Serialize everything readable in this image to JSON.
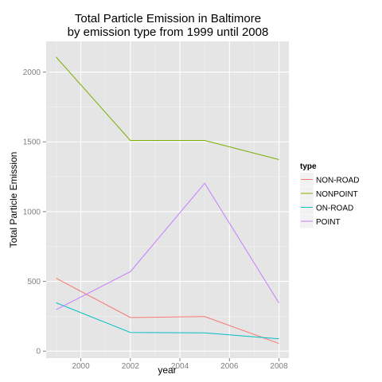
{
  "chart_data": {
    "type": "line",
    "title_line1": "Total Particle Emission in Baltimore",
    "title_line2": "by emission type from 1999 until 2008",
    "xlabel": "year",
    "ylabel": "Total Particle Emission",
    "xlim": [
      1998.6,
      2008.4
    ],
    "ylim": [
      -50,
      2220
    ],
    "x_ticks": [
      2000,
      2002,
      2004,
      2006,
      2008
    ],
    "x_tick_labels": [
      "2000",
      "2002",
      "2004",
      "2006",
      "2008"
    ],
    "y_ticks": [
      0,
      500,
      1000,
      1500,
      2000
    ],
    "y_tick_labels": [
      "0",
      "500",
      "1000",
      "1500",
      "2000"
    ],
    "grid": true,
    "legend": {
      "title": "type",
      "position": "right"
    },
    "x": [
      1999,
      2002,
      2005,
      2008
    ],
    "series": [
      {
        "name": "NON-ROAD",
        "color": "#F8766D",
        "values": [
          523,
          241,
          248,
          55
        ]
      },
      {
        "name": "NONPOINT",
        "color": "#7CAE00",
        "values": [
          2108,
          1510,
          1510,
          1373
        ]
      },
      {
        "name": "ON-ROAD",
        "color": "#00BFC4",
        "values": [
          347,
          134,
          131,
          88
        ]
      },
      {
        "name": "POINT",
        "color": "#C77CFF",
        "values": [
          297,
          570,
          1203,
          345
        ]
      }
    ]
  }
}
